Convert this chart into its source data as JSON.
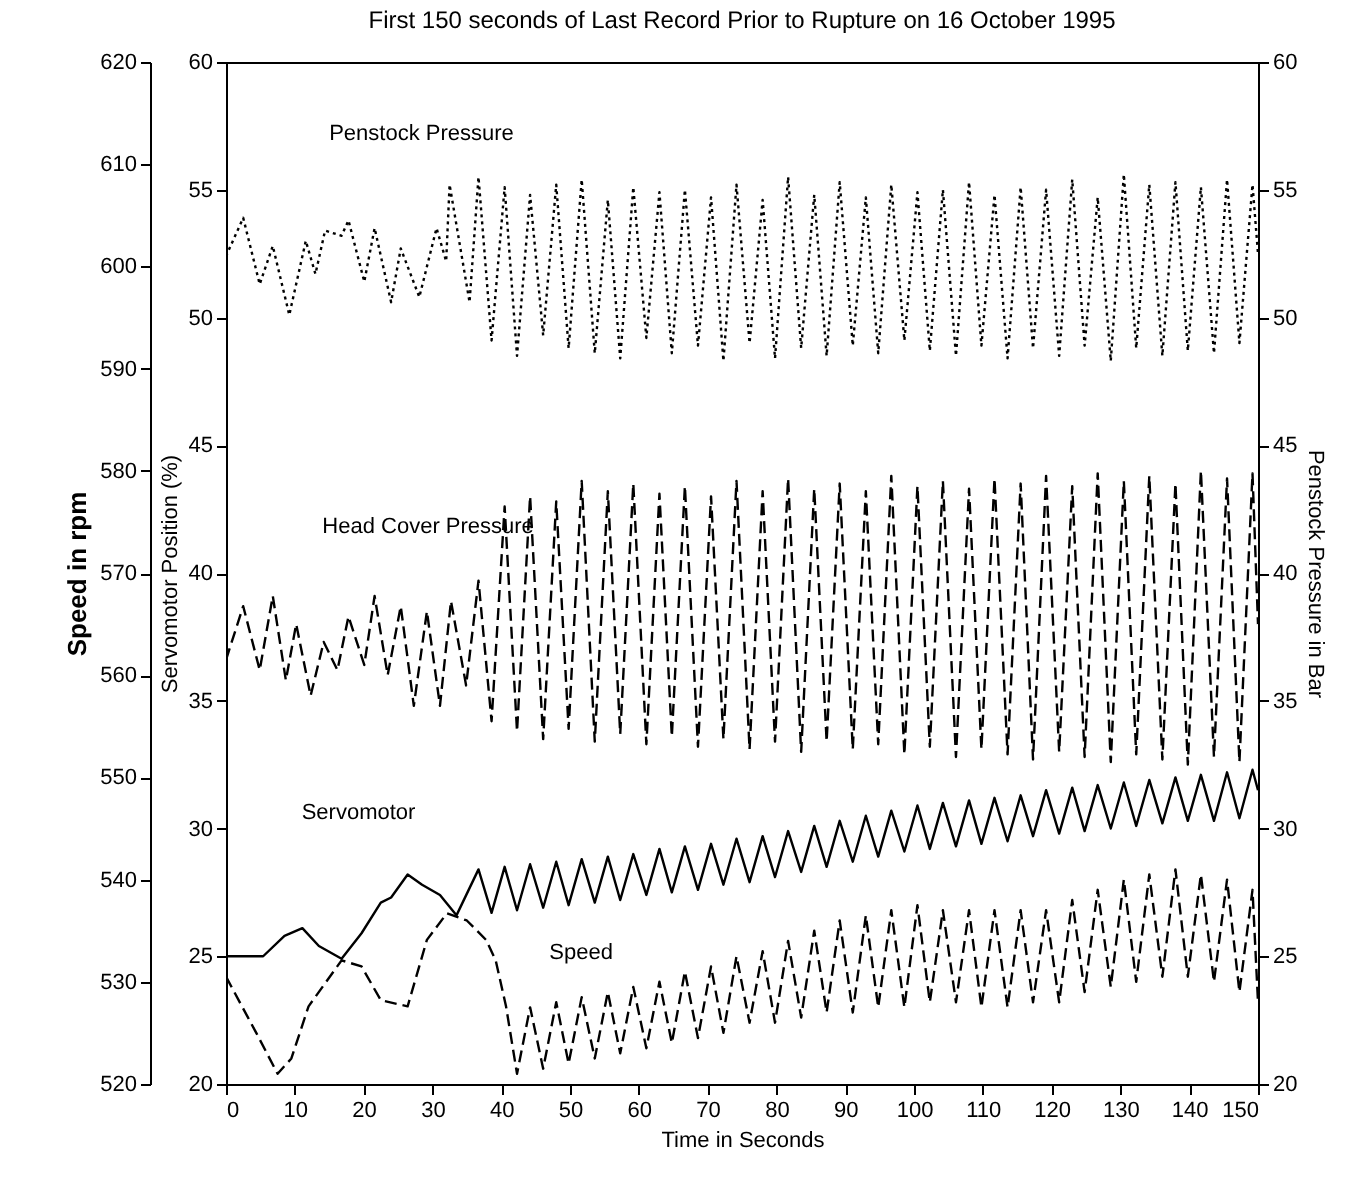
{
  "chart_data": {
    "type": "line",
    "title": "First 150 seconds of Last Record Prior to Rupture on 16 October 1995",
    "xlabel": "Time in Seconds",
    "ylabel": "Speed in rpm",
    "y2label": "Penstock Pressure in Bar",
    "y3label": "Servomotor Position (%)",
    "xlim": [
      0,
      150
    ],
    "xticks": [
      0,
      10,
      20,
      30,
      40,
      50,
      60,
      70,
      80,
      90,
      100,
      110,
      120,
      130,
      140,
      150
    ],
    "ylim": [
      520,
      620
    ],
    "yticks": [
      520,
      530,
      540,
      550,
      560,
      570,
      580,
      590,
      600,
      610,
      620
    ],
    "y2lim": [
      20,
      60
    ],
    "y2ticks": [
      20,
      25,
      30,
      35,
      40,
      45,
      50,
      55,
      60
    ],
    "y3lim": [
      20,
      60
    ],
    "y3ticks": [
      20,
      25,
      30,
      35,
      40,
      45,
      50,
      55,
      60
    ],
    "series": [
      {
        "name": "Penstock Pressure",
        "color": "#000000",
        "axis": "y2",
        "line_style": "dotted",
        "x": [
          0,
          2.5,
          4.9,
          6.8,
          9.2,
          11.6,
          13,
          14.4,
          16.8,
          17.8,
          20.1,
          21.6,
          24,
          25.4,
          28.1,
          30.6,
          32,
          32.5,
          35.4,
          36.7,
          38.6,
          40.5,
          42.3,
          44.2,
          46.1,
          48,
          49.8,
          51.7,
          53.6,
          55.5,
          57.3,
          59.2,
          61.1,
          63,
          64.8,
          66.7,
          68.6,
          70.5,
          72.3,
          74.2,
          76.1,
          78,
          79.8,
          81.7,
          83.6,
          85.5,
          87.3,
          89.2,
          91.1,
          93,
          94.8,
          96.7,
          98.6,
          100.5,
          102.3,
          104.2,
          106.1,
          108,
          109.8,
          111.7,
          113.6,
          115.5,
          117.3,
          119.2,
          121.1,
          123,
          124.8,
          126.7,
          128.6,
          130.5,
          132.3,
          134.2,
          136.1,
          138,
          139.8,
          141.7,
          143.6,
          145.5,
          147.3,
          149.2,
          150
        ],
        "values": [
          52.4,
          53.9,
          51.3,
          52.8,
          50.1,
          53,
          51.7,
          53.4,
          53.2,
          53.8,
          51.4,
          53.5,
          50.6,
          52.7,
          50.8,
          53.5,
          52.2,
          55.2,
          50.6,
          55.5,
          49.1,
          55.1,
          48.5,
          54.8,
          49.3,
          55.2,
          48.8,
          55.4,
          48.6,
          54.6,
          48.4,
          55.1,
          49.2,
          54.9,
          48.6,
          55,
          48.9,
          54.7,
          48.3,
          55.2,
          49,
          54.6,
          48.4,
          55.5,
          48.8,
          54.8,
          48.5,
          55.3,
          48.9,
          54.7,
          48.6,
          55.2,
          49.1,
          54.9,
          48.7,
          55,
          48.5,
          55.3,
          48.9,
          54.8,
          48.4,
          55.1,
          48.8,
          55,
          48.5,
          55.4,
          48.9,
          54.7,
          48.3,
          55.6,
          48.8,
          55.2,
          48.5,
          55.3,
          48.7,
          55.1,
          48.6,
          55.4,
          49,
          55.2,
          52.5
        ]
      },
      {
        "name": "Head Cover Pressure",
        "color": "#000000",
        "axis": "y2",
        "line_style": "dashed",
        "x": [
          0,
          2.5,
          4.9,
          6.8,
          8.7,
          10.2,
          12.3,
          14.2,
          16.2,
          17.8,
          20.1,
          21.6,
          23.5,
          25.4,
          27.3,
          29.2,
          31.1,
          32.7,
          34.9,
          36.7,
          38.6,
          40.5,
          42.3,
          44.2,
          46.1,
          48,
          49.8,
          51.7,
          53.6,
          55.5,
          57.3,
          59.2,
          61.1,
          63,
          64.8,
          66.7,
          68.6,
          70.5,
          72.3,
          74.2,
          76.1,
          78,
          79.8,
          81.7,
          83.6,
          85.5,
          87.3,
          89.2,
          91.1,
          93,
          94.8,
          96.7,
          98.6,
          100.5,
          102.3,
          104.2,
          106.1,
          108,
          109.8,
          111.7,
          113.6,
          115.5,
          117.3,
          119.2,
          121.1,
          123,
          124.8,
          126.7,
          128.6,
          130.5,
          132.3,
          134.2,
          136.1,
          138,
          139.8,
          141.7,
          143.6,
          145.5,
          147.3,
          149.2,
          150
        ],
        "values": [
          36.6,
          38.7,
          36.2,
          39.1,
          35.8,
          38,
          35.2,
          37.3,
          36.2,
          38.3,
          36.4,
          39.1,
          36,
          38.7,
          34.8,
          38.5,
          34.8,
          38.9,
          35.6,
          39.7,
          34.2,
          42.6,
          33.8,
          43,
          33.5,
          42.8,
          33.9,
          43.6,
          33.4,
          43.2,
          33.7,
          43.5,
          33.3,
          43.1,
          33.6,
          43.4,
          33.2,
          43,
          33.5,
          43.6,
          33.1,
          43.2,
          33.4,
          43.7,
          33,
          43.3,
          33.4,
          43.5,
          33.1,
          43.2,
          33.3,
          43.8,
          32.9,
          43.4,
          33.2,
          43.6,
          32.8,
          43.3,
          33.1,
          43.7,
          32.9,
          43.5,
          32.7,
          43.8,
          33,
          43.4,
          32.8,
          43.9,
          32.6,
          43.6,
          32.9,
          43.8,
          32.7,
          43.5,
          32.5,
          44,
          32.8,
          43.7,
          32.6,
          43.9,
          38
        ]
      },
      {
        "name": "Servomotor",
        "color": "#000000",
        "axis": "y3",
        "line_style": "solid",
        "x": [
          0,
          5.4,
          8.5,
          11.1,
          13.5,
          16.8,
          19.7,
          22.5,
          24,
          26.4,
          28.5,
          31.1,
          33.5,
          36.7,
          38.6,
          40.5,
          42.3,
          44.2,
          46.1,
          48,
          49.8,
          51.7,
          53.6,
          55.5,
          57.3,
          59.2,
          61.1,
          63,
          64.8,
          66.7,
          68.6,
          70.5,
          72.3,
          74.2,
          76.1,
          78,
          79.8,
          81.7,
          83.6,
          85.5,
          87.3,
          89.2,
          91.1,
          93,
          94.8,
          96.7,
          98.6,
          100.5,
          102.3,
          104.2,
          106.1,
          108,
          109.8,
          111.7,
          113.6,
          115.5,
          117.3,
          119.2,
          121.1,
          123,
          124.8,
          126.7,
          128.6,
          130.5,
          132.3,
          134.2,
          136.1,
          138,
          139.8,
          141.7,
          143.6,
          145.5,
          147.3,
          149.2,
          150
        ],
        "values": [
          25,
          25,
          25.8,
          26.1,
          25.4,
          24.9,
          25.9,
          27.1,
          27.3,
          28.2,
          27.8,
          27.4,
          26.6,
          28.4,
          26.7,
          28.5,
          26.8,
          28.6,
          26.9,
          28.7,
          27,
          28.8,
          27.1,
          28.9,
          27.2,
          29,
          27.4,
          29.2,
          27.5,
          29.3,
          27.6,
          29.4,
          27.8,
          29.6,
          27.9,
          29.7,
          28.1,
          29.9,
          28.3,
          30.1,
          28.5,
          30.3,
          28.7,
          30.5,
          28.9,
          30.7,
          29.1,
          30.9,
          29.2,
          31,
          29.3,
          31.1,
          29.4,
          31.2,
          29.5,
          31.3,
          29.7,
          31.5,
          29.8,
          31.6,
          29.9,
          31.7,
          30,
          31.8,
          30.1,
          31.9,
          30.2,
          32,
          30.3,
          32.1,
          30.3,
          32.2,
          30.4,
          32.3,
          31.5
        ]
      },
      {
        "name": "Speed",
        "color": "#000000",
        "axis": "y",
        "line_style": "dashed",
        "x": [
          0,
          4.4,
          7.5,
          9.5,
          12,
          16.8,
          19.7,
          22.5,
          26.4,
          29.2,
          32.1,
          35,
          37.8,
          39.2,
          40.7,
          42.3,
          44.2,
          46.1,
          48,
          49.8,
          51.7,
          53.6,
          55.5,
          57.3,
          59.2,
          61.1,
          63,
          64.8,
          66.7,
          68.6,
          70.5,
          72.3,
          74.2,
          76.1,
          78,
          79.8,
          81.7,
          83.6,
          85.5,
          87.3,
          89.2,
          91.1,
          93,
          94.8,
          96.7,
          98.6,
          100.5,
          102.3,
          104.2,
          106.1,
          108,
          109.8,
          111.7,
          113.6,
          115.5,
          117.3,
          119.2,
          121.1,
          123,
          124.8,
          126.7,
          128.6,
          130.5,
          132.3,
          134.2,
          136.1,
          138,
          139.8,
          141.7,
          143.6,
          145.5,
          147.3,
          149.2,
          150
        ],
        "values": [
          530.5,
          525,
          521,
          522.5,
          527.6,
          532.1,
          531.5,
          528.2,
          527.6,
          534.1,
          536.7,
          536,
          534.1,
          532.1,
          527.6,
          521,
          527.5,
          521.5,
          528,
          522,
          528.5,
          522.5,
          529,
          523,
          529.5,
          523.5,
          530,
          524,
          531,
          524.5,
          531.5,
          525,
          532.5,
          526,
          533,
          526,
          534,
          526.5,
          535,
          527,
          536,
          527,
          536.5,
          527.5,
          537,
          527.5,
          537.5,
          528,
          537,
          528,
          537,
          527.5,
          537,
          527.5,
          537,
          528,
          537,
          528,
          538,
          529,
          539,
          529.5,
          540,
          530,
          540.5,
          530.5,
          541,
          530.5,
          540.5,
          530,
          540,
          529,
          539,
          528
        ]
      }
    ]
  }
}
